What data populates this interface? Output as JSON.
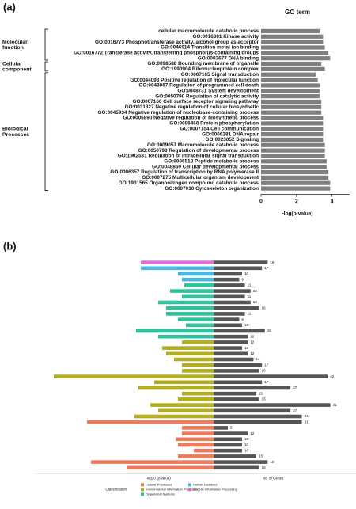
{
  "chart_data": [
    {
      "type": "hbar",
      "panel_label": "(a)",
      "title": "GO term",
      "xlabel": "-log(p-value)",
      "color": "#7f7f7f",
      "xlim": [
        0,
        5
      ],
      "xticks": [
        0,
        2,
        4
      ],
      "categories": [
        "cellular macromolecule catabolic process",
        "GO:0016301 Kinase activity",
        "GO:0016773 Phosphotransferase activity, alcohol group as acceptor",
        "GO:0046914 Transition metal ion binding",
        "GO:0016772 Transferase activity, transferring phosphorus-containing groups",
        "GO:0003677 DNA binding",
        "GO:0098588 Bounding membrane of organelle",
        "GO:1990904 Ribonucleoprotein complex",
        "GO:0007165 Signal transduction",
        "GO:0044093 Positive regulation of molecular function",
        "GO:0043067 Regulation of programmed cell death",
        "GO:0048731 System development",
        "GO:0050790 Regulation of catalytic activity",
        "GO:0007166 Cell surface receptor signaling pathway",
        "GO:0031327 Negative regulation of cellular biosynthetic",
        "GO:0045934 Negative regulation of nucleobase-containing process",
        "GO:0005890 Negative regulation of biosynthetic process",
        "GO:0006468 Protein phosphorylation",
        "GO:0007154 Cell communication",
        "GO:0006281 DNA repair",
        "GO:0023052 Signaling",
        "GO:0009057 Macromolecule catabolic process",
        "GO:0050793 Regulation of developmental process",
        "GO:1902531 Regulation of intracellular signal transduction",
        "GO:0006518 Peptide metabolic process",
        "GO:0048869 Cellular developmental process",
        "GO:0006357 Regulation of transcription by RNA polymerase II",
        "GO:0007275 Multicellular organism development",
        "GO:1901565 Organonitrogen compound catabolic process",
        "GO:0007010 Cytoskeleton organization"
      ],
      "values": [
        3.3,
        3.5,
        3.5,
        3.6,
        3.8,
        3.9,
        3.4,
        3.6,
        3.1,
        3.2,
        3.3,
        3.3,
        3.3,
        3.4,
        3.4,
        3.4,
        3.5,
        3.5,
        3.5,
        3.5,
        3.5,
        3.6,
        3.6,
        3.6,
        3.7,
        3.7,
        3.8,
        3.8,
        3.9,
        3.9
      ],
      "groups": [
        {
          "label": "Molecular function",
          "count": 6
        },
        {
          "label": "Cellular component",
          "count": 2
        },
        {
          "label": "Biological Processes",
          "count": 22
        }
      ]
    },
    {
      "type": "diverging",
      "panel_label": "(b)",
      "categories": [
        null,
        null,
        null,
        null,
        null,
        null,
        null,
        null,
        null,
        null,
        null,
        null,
        null,
        null,
        null,
        null,
        null,
        null,
        null,
        null,
        null,
        null,
        null,
        null,
        null,
        null,
        null,
        null,
        null,
        null,
        null,
        null,
        null,
        null,
        null,
        null,
        null
      ],
      "series": [
        {
          "lim": [
            0,
            11
          ],
          "values": [
            4.6,
            4.6,
            2.25,
            2.0,
            1.85,
            2.75,
            2.0,
            3.5,
            3.0,
            3.0,
            2.25,
            1.75,
            4.9,
            3.5,
            2.0,
            3.25,
            3.0,
            2.5,
            2.0,
            2.0,
            10.1,
            3.75,
            4.75,
            2.0,
            2.25,
            4.0,
            3.5,
            5.0,
            8.0,
            2.0,
            2.0,
            2.4,
            2.25,
            1.25,
            2.25,
            7.75,
            5.5
          ],
          "colors": [
            "#d96fd9",
            "#45b8e3",
            "#45b8e3",
            "#45b8e3",
            "#2fc29c",
            "#2fc29c",
            "#2fc29c",
            "#2fc29c",
            "#2fc29c",
            "#2fc29c",
            "#2fc29c",
            "#2fc29c",
            "#2fc29c",
            "#2fc29c",
            "#b3ae1e",
            "#b3ae1e",
            "#b3ae1e",
            "#b3ae1e",
            "#b3ae1e",
            "#b3ae1e",
            "#b3ae1e",
            "#b3ae1e",
            "#b3ae1e",
            "#b3ae1e",
            "#b3ae1e",
            "#b3ae1e",
            "#b3ae1e",
            "#b3ae1e",
            "#f07a5c",
            "#f07a5c",
            "#f07a5c",
            "#f07a5c",
            "#f07a5c",
            "#f07a5c",
            "#f07a5c",
            "#f07a5c",
            "#f07a5c"
          ]
        },
        {
          "lim": [
            0,
            50
          ],
          "color": "#555555",
          "values": [
            19,
            17,
            10,
            9,
            11,
            13,
            11,
            13,
            16,
            11,
            9,
            10,
            18,
            12,
            12,
            10,
            12,
            14,
            17,
            16,
            40,
            17,
            27,
            15,
            16,
            41,
            27,
            31,
            31,
            5,
            12,
            10,
            10,
            10,
            15,
            19,
            16
          ]
        }
      ],
      "xlabel_left": "-log10 (p-value)",
      "xlabel_right": "No. of Genes",
      "legend_title": "Classification",
      "legend": [
        {
          "name": "Cellular Processes",
          "color": "#f07a5c"
        },
        {
          "name": "Human Diseases",
          "color": "#45b8e3"
        },
        {
          "name": "Environmental Information Processing",
          "color": "#b3ae1e"
        },
        {
          "name": "Genetic Information Processing",
          "color": "#d96fd9"
        },
        {
          "name": "Organismal Systems",
          "color": "#2fc29c"
        }
      ]
    }
  ]
}
